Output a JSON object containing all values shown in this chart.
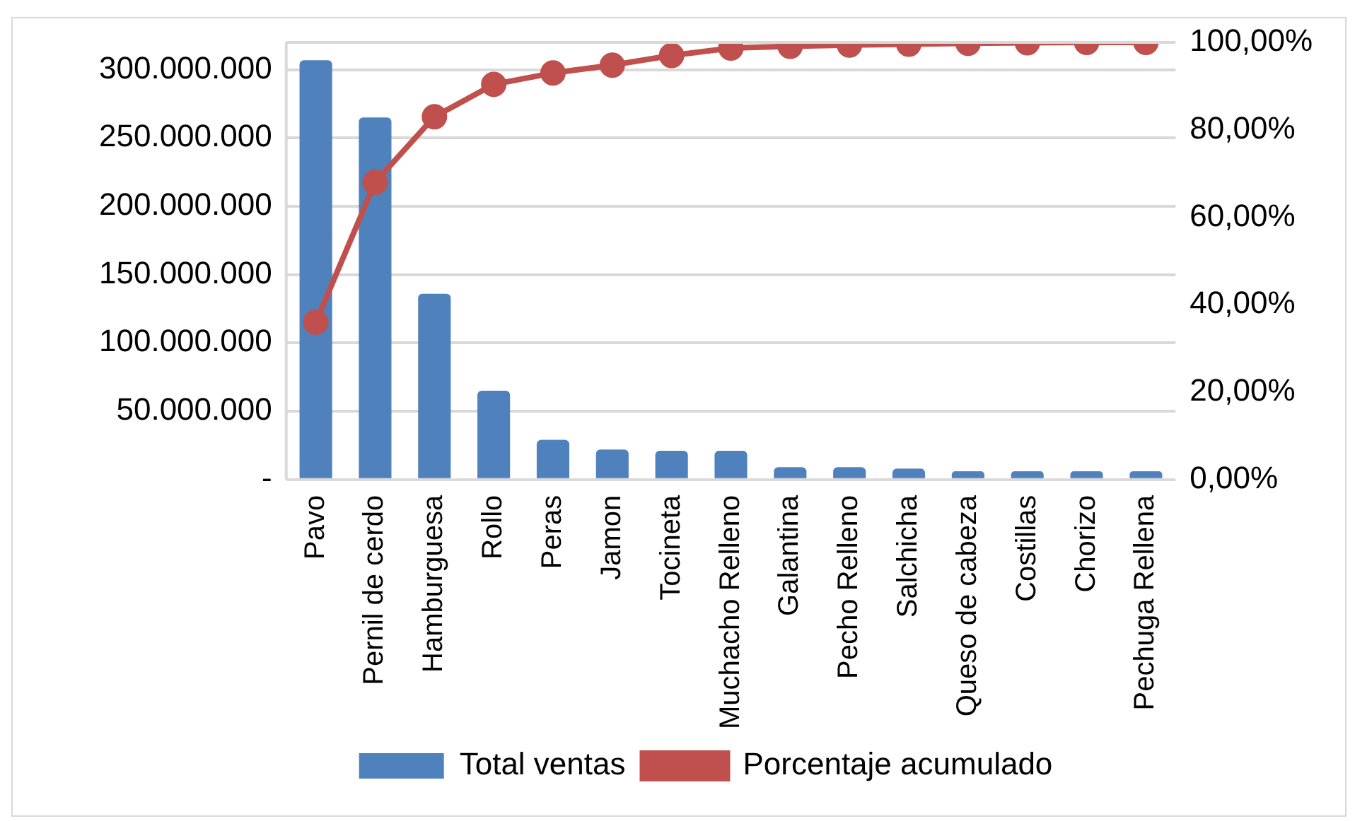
{
  "chart_data": {
    "type": "bar",
    "categories": [
      "Pavo",
      "Pernil de cerdo",
      "Hamburguesa",
      "Rollo",
      "Peras",
      "Jamon",
      "Tocineta",
      "Muchacho Relleno",
      "Galantina",
      "Pecho Relleno",
      "Salchicha",
      "Queso de cabeza",
      "Costillas",
      "Chorizo",
      "Pechuga Rellena"
    ],
    "series": [
      {
        "name": "Total ventas",
        "color": "#4f81bd",
        "values": [
          307000000,
          265000000,
          136000000,
          65000000,
          29000000,
          22000000,
          21000000,
          21000000,
          9000000,
          9000000,
          8000000,
          6000000,
          6000000,
          6000000,
          6000000
        ]
      },
      {
        "name": "Porcentaje acumulado",
        "type": "line",
        "axis": "y2",
        "color": "#c0504d",
        "values": [
          36,
          68,
          83,
          90.4,
          93,
          94.8,
          97,
          98.7,
          99.1,
          99.4,
          99.6,
          99.8,
          99.9,
          100,
          100
        ]
      }
    ],
    "ylim": [
      0,
      320000000
    ],
    "yticks": [
      {
        "value": 0,
        "label": "-"
      },
      {
        "value": 50000000,
        "label": "50.000.000"
      },
      {
        "value": 100000000,
        "label": "100.000.000"
      },
      {
        "value": 150000000,
        "label": "150.000.000"
      },
      {
        "value": 200000000,
        "label": "200.000.000"
      },
      {
        "value": 250000000,
        "label": "250.000.000"
      },
      {
        "value": 300000000,
        "label": "300.000.000"
      }
    ],
    "y2lim": [
      0,
      100
    ],
    "y2ticks": [
      {
        "value": 0,
        "label": "0,00%"
      },
      {
        "value": 20,
        "label": "20,00%"
      },
      {
        "value": 40,
        "label": "40,00%"
      },
      {
        "value": 60,
        "label": "60,00%"
      },
      {
        "value": 80,
        "label": "80,00%"
      },
      {
        "value": 100,
        "label": "100,00%"
      }
    ],
    "grid": "y",
    "legend": "bottom",
    "marker": "circle",
    "line_style": "solid"
  }
}
